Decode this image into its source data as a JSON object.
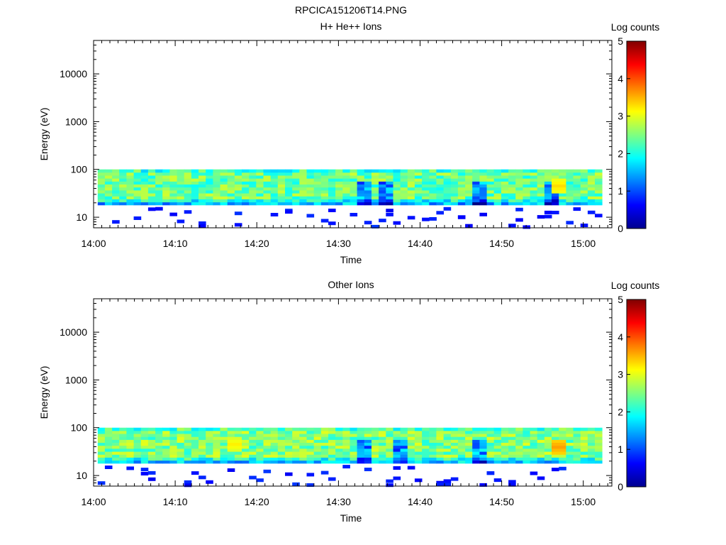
{
  "title": "RPCICA151206T14.PNG",
  "chart_data": [
    {
      "type": "heatmap",
      "title": "H+ He++ Ions",
      "xlabel": "Time",
      "ylabel": "Energy (eV)",
      "x_ticks": [
        "14:00",
        "14:10",
        "14:20",
        "14:30",
        "14:40",
        "14:50",
        "15:00"
      ],
      "y_ticks": [
        "10",
        "100",
        "1000",
        "10000"
      ],
      "y_scale": "log",
      "ylim": [
        6,
        50000
      ],
      "xlim_minutes": [
        0,
        63.5
      ],
      "data_range_minutes": [
        0.5,
        62.3
      ],
      "energy_band_eV": [
        18,
        100
      ],
      "colorbar": {
        "label": "Log counts",
        "ticks": [
          "0",
          "1",
          "2",
          "3",
          "4",
          "5"
        ],
        "range": [
          0,
          5
        ]
      },
      "typical_log_counts": 2.4,
      "hot_spots": [
        {
          "time_minutes": 56.5,
          "energy_eV": 45,
          "log_counts": 3.3
        }
      ],
      "dropouts_minutes": [
        33.0,
        35.0,
        47.0,
        56.0
      ]
    },
    {
      "type": "heatmap",
      "title": "Other Ions",
      "xlabel": "Time",
      "ylabel": "Energy (eV)",
      "x_ticks": [
        "14:00",
        "14:10",
        "14:20",
        "14:30",
        "14:40",
        "14:50",
        "15:00"
      ],
      "y_ticks": [
        "10",
        "100",
        "1000",
        "10000"
      ],
      "y_scale": "log",
      "ylim": [
        6,
        50000
      ],
      "xlim_minutes": [
        0,
        63.5
      ],
      "data_range_minutes": [
        0.5,
        62.3
      ],
      "energy_band_eV": [
        18,
        100
      ],
      "colorbar": {
        "label": "Log counts",
        "ticks": [
          "0",
          "1",
          "2",
          "3",
          "4",
          "5"
        ],
        "range": [
          0,
          5
        ]
      },
      "typical_log_counts": 2.5,
      "hot_spots": [
        {
          "time_minutes": 56.5,
          "energy_eV": 40,
          "log_counts": 3.6
        },
        {
          "time_minutes": 17.0,
          "energy_eV": 45,
          "log_counts": 3.2
        }
      ],
      "dropouts_minutes": [
        33.0,
        37.0,
        47.0
      ]
    }
  ]
}
